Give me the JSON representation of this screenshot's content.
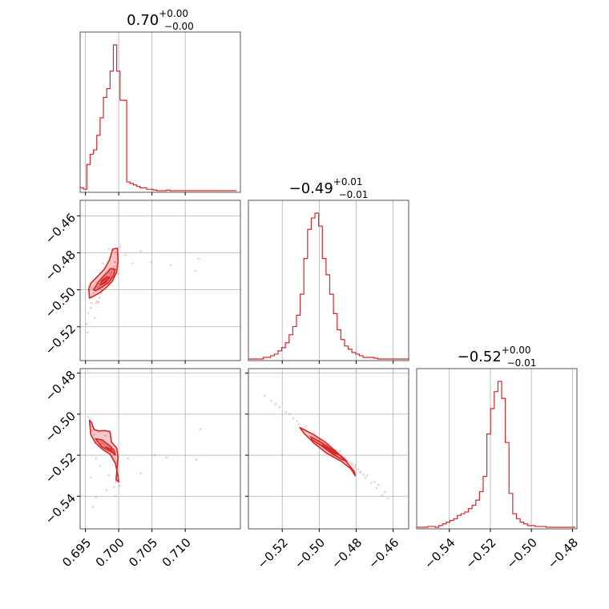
{
  "chart_data": {
    "type": "corner",
    "accent_color": "#d62728",
    "grid": true,
    "titles": [
      {
        "main": "0.70",
        "sup": "+0.00",
        "sub": "−0.00"
      },
      {
        "main": "−0.49",
        "sup": "+0.01",
        "sub": "−0.01"
      },
      {
        "main": "−0.52",
        "sup": "+0.00",
        "sub": "−0.01"
      }
    ],
    "params": [
      {
        "range": [
          0.6942,
          0.7183
        ],
        "ticks": [
          0.695,
          0.7,
          0.705,
          0.71
        ],
        "tick_labels": [
          "0.695",
          "0.700",
          "0.705",
          "0.710"
        ]
      },
      {
        "range": [
          -0.5383,
          -0.4516
        ],
        "ticks": [
          -0.52,
          -0.5,
          -0.48,
          -0.46
        ],
        "tick_labels": [
          "−0.52",
          "−0.50",
          "−0.48",
          "−0.46"
        ]
      },
      {
        "range": [
          -0.5559,
          -0.4778
        ],
        "ticks": [
          -0.54,
          -0.52,
          -0.5,
          -0.48
        ],
        "tick_labels": [
          "−0.54",
          "−0.52",
          "−0.50",
          "−0.48"
        ]
      }
    ],
    "histograms": [
      {
        "start": 0.6942,
        "step": 0.0005,
        "counts": [
          0.02,
          0.01,
          0.18,
          0.25,
          0.28,
          0.38,
          0.5,
          0.64,
          0.7,
          0.82,
          1.0,
          0.82,
          0.62,
          0.62,
          0.06,
          0.05,
          0.04,
          0.03,
          0.02,
          0.02,
          0.01,
          0.01,
          0.005,
          0.0,
          0.0,
          0.0,
          0.005,
          0.0,
          0.0,
          0.0,
          0.0,
          0.0,
          0.0,
          0.0,
          0.0,
          0.0,
          0.0,
          0.0,
          0.0,
          0.0,
          0.0,
          0.0,
          0.0,
          0.0,
          0.0,
          0.0,
          0.0
        ]
      },
      {
        "start": -0.5383,
        "step": 0.002,
        "counts": [
          0.0,
          0.0,
          0.0,
          0.0,
          0.01,
          0.01,
          0.02,
          0.03,
          0.05,
          0.07,
          0.1,
          0.15,
          0.2,
          0.27,
          0.4,
          0.62,
          0.8,
          0.87,
          0.9,
          0.82,
          0.62,
          0.52,
          0.4,
          0.28,
          0.18,
          0.12,
          0.08,
          0.06,
          0.04,
          0.03,
          0.02,
          0.01,
          0.01,
          0.01,
          0.005,
          0.0,
          0.0,
          0.0,
          0.0,
          0.0,
          0.0,
          0.0,
          0.0,
          0.0
        ]
      },
      {
        "start": -0.5559,
        "step": 0.0018,
        "counts": [
          0.0,
          0.0,
          0.0,
          0.005,
          0.005,
          0.0,
          0.01,
          0.02,
          0.03,
          0.04,
          0.05,
          0.07,
          0.08,
          0.09,
          0.11,
          0.13,
          0.16,
          0.21,
          0.3,
          0.55,
          0.7,
          0.8,
          0.86,
          0.76,
          0.5,
          0.2,
          0.08,
          0.05,
          0.03,
          0.02,
          0.01,
          0.01,
          0.005,
          0.005,
          0.005,
          0.0,
          0.0,
          0.0,
          0.0,
          0.0,
          0.0,
          0.0,
          0.0
        ]
      }
    ],
    "pairs": [
      {
        "row": 1,
        "col": 0,
        "contours": [
          [
            [
              0.6955,
              -0.4995
            ],
            [
              0.6956,
              -0.5045
            ],
            [
              0.6962,
              -0.5035
            ],
            [
              0.6972,
              -0.5015
            ],
            [
              0.6982,
              -0.4985
            ],
            [
              0.699,
              -0.4955
            ],
            [
              0.6997,
              -0.4905
            ],
            [
              0.6999,
              -0.4845
            ],
            [
              0.6998,
              -0.4775
            ],
            [
              0.6991,
              -0.478
            ],
            [
              0.6986,
              -0.484
            ],
            [
              0.6978,
              -0.489
            ],
            [
              0.6966,
              -0.4935
            ],
            [
              0.6958,
              -0.4965
            ]
          ],
          [
            [
              0.6962,
              -0.5
            ],
            [
              0.6965,
              -0.5005
            ],
            [
              0.6975,
              -0.4985
            ],
            [
              0.6985,
              -0.496
            ],
            [
              0.6992,
              -0.4925
            ],
            [
              0.6995,
              -0.489
            ],
            [
              0.6988,
              -0.4885
            ],
            [
              0.698,
              -0.4915
            ],
            [
              0.697,
              -0.4955
            ]
          ],
          [
            [
              0.6972,
              -0.4975
            ],
            [
              0.698,
              -0.496
            ],
            [
              0.6986,
              -0.4935
            ],
            [
              0.6982,
              -0.493
            ],
            [
              0.6975,
              -0.495
            ]
          ]
        ],
        "points": [
          [
            0.6952,
            -0.5185
          ],
          [
            0.6954,
            -0.5128
          ],
          [
            0.6959,
            -0.5072
          ],
          [
            0.6966,
            -0.5071
          ],
          [
            0.6968,
            -0.5064
          ],
          [
            0.697,
            -0.5067
          ],
          [
            0.6971,
            -0.5043
          ],
          [
            0.6974,
            -0.5019
          ],
          [
            0.6976,
            -0.5003
          ],
          [
            0.6979,
            -0.4969
          ],
          [
            0.698,
            -0.4957
          ],
          [
            0.6982,
            -0.4963
          ],
          [
            0.6984,
            -0.4971
          ],
          [
            0.6986,
            -0.4932
          ],
          [
            0.6989,
            -0.4922
          ],
          [
            0.699,
            -0.4904
          ],
          [
            0.6991,
            -0.4882
          ],
          [
            0.6993,
            -0.4878
          ],
          [
            0.6995,
            -0.4851
          ],
          [
            0.6997,
            -0.4834
          ],
          [
            0.6998,
            -0.4808
          ],
          [
            0.6962,
            -0.5019
          ],
          [
            0.6973,
            -0.5001
          ],
          [
            0.6988,
            -0.493
          ],
          [
            0.6995,
            -0.4797
          ],
          [
            0.6986,
            -0.4885
          ],
          [
            0.6979,
            -0.4917
          ],
          [
            0.6967,
            -0.4961
          ],
          [
            0.696,
            -0.499
          ],
          [
            0.6994,
            -0.485
          ],
          [
            0.7002,
            -0.4768
          ],
          [
            0.701,
            -0.4812
          ],
          [
            0.7021,
            -0.4857
          ],
          [
            0.7033,
            -0.479
          ],
          [
            0.7049,
            -0.4851
          ],
          [
            0.7078,
            -0.4866
          ],
          [
            0.712,
            -0.4833
          ],
          [
            0.7115,
            -0.4897
          ],
          [
            0.6958,
            -0.5098
          ],
          [
            0.6964,
            -0.5151
          ],
          [
            0.6953,
            -0.5232
          ],
          [
            0.6976,
            -0.4856
          ],
          [
            0.6985,
            -0.4779
          ],
          [
            0.6999,
            -0.4912
          ],
          [
            0.697,
            -0.4985
          ],
          [
            0.6982,
            -0.4955
          ],
          [
            0.6992,
            -0.4893
          ],
          [
            0.6977,
            -0.494
          ],
          [
            0.6988,
            -0.4908
          ],
          [
            0.6996,
            -0.487
          ]
        ]
      },
      {
        "row": 2,
        "col": 0,
        "contours": [
          [
            [
              0.6956,
              -0.503
            ],
            [
              0.6958,
              -0.51
            ],
            [
              0.6965,
              -0.514
            ],
            [
              0.6975,
              -0.517
            ],
            [
              0.6987,
              -0.5195
            ],
            [
              0.6995,
              -0.524
            ],
            [
              0.6999,
              -0.53
            ],
            [
              0.7,
              -0.533
            ],
            [
              0.6996,
              -0.532
            ],
            [
              0.6998,
              -0.525
            ],
            [
              0.6999,
              -0.521
            ],
            [
              0.6997,
              -0.5165
            ],
            [
              0.6989,
              -0.5135
            ],
            [
              0.6987,
              -0.5085
            ],
            [
              0.6979,
              -0.508
            ],
            [
              0.697,
              -0.5082
            ],
            [
              0.6963,
              -0.5075
            ],
            [
              0.6959,
              -0.504
            ]
          ],
          [
            [
              0.6965,
              -0.512
            ],
            [
              0.6975,
              -0.516
            ],
            [
              0.699,
              -0.5185
            ],
            [
              0.6995,
              -0.52
            ],
            [
              0.6993,
              -0.5175
            ],
            [
              0.6985,
              -0.515
            ],
            [
              0.6975,
              -0.5125
            ]
          ],
          [
            [
              0.698,
              -0.516
            ],
            [
              0.699,
              -0.518
            ],
            [
              0.6993,
              -0.5195
            ],
            [
              0.6988,
              -0.517
            ]
          ]
        ],
        "points": [
          [
            0.6954,
            -0.5014
          ],
          [
            0.6957,
            -0.5026
          ],
          [
            0.696,
            -0.5081
          ],
          [
            0.6963,
            -0.5101
          ],
          [
            0.6967,
            -0.5131
          ],
          [
            0.697,
            -0.5154
          ],
          [
            0.6974,
            -0.5164
          ],
          [
            0.6977,
            -0.5169
          ],
          [
            0.698,
            -0.5175
          ],
          [
            0.6984,
            -0.5181
          ],
          [
            0.6988,
            -0.5192
          ],
          [
            0.6991,
            -0.5203
          ],
          [
            0.6994,
            -0.5217
          ],
          [
            0.6996,
            -0.5233
          ],
          [
            0.6998,
            -0.5251
          ],
          [
            0.6999,
            -0.5274
          ],
          [
            0.6998,
            -0.53
          ],
          [
            0.6996,
            -0.533
          ],
          [
            0.6993,
            -0.5355
          ],
          [
            0.6969,
            -0.5085
          ],
          [
            0.698,
            -0.5105
          ],
          [
            0.6986,
            -0.509
          ],
          [
            0.6975,
            -0.514
          ],
          [
            0.6989,
            -0.516
          ],
          [
            0.696,
            -0.506
          ],
          [
            0.6966,
            -0.5215
          ],
          [
            0.6972,
            -0.5252
          ],
          [
            0.6958,
            -0.531
          ],
          [
            0.6966,
            -0.5405
          ],
          [
            0.6982,
            -0.537
          ],
          [
            0.6961,
            -0.5452
          ],
          [
            0.7014,
            -0.5216
          ],
          [
            0.7033,
            -0.5289
          ],
          [
            0.7054,
            -0.52
          ],
          [
            0.7072,
            -0.5211
          ],
          [
            0.7123,
            -0.5073
          ],
          [
            0.7117,
            -0.5221
          ],
          [
            0.7001,
            -0.535
          ],
          [
            0.6985,
            -0.5296
          ],
          [
            0.6995,
            -0.54
          ]
        ]
      },
      {
        "row": 2,
        "col": 1,
        "contours": [
          [
            [
              -0.5105,
              -0.5065
            ],
            [
              -0.503,
              -0.51
            ],
            [
              -0.497,
              -0.5135
            ],
            [
              -0.4905,
              -0.5185
            ],
            [
              -0.4855,
              -0.523
            ],
            [
              -0.481,
              -0.528
            ],
            [
              -0.4805,
              -0.53
            ],
            [
              -0.483,
              -0.5265
            ],
            [
              -0.488,
              -0.523
            ],
            [
              -0.496,
              -0.519
            ],
            [
              -0.503,
              -0.514
            ],
            [
              -0.5085,
              -0.509
            ]
          ],
          [
            [
              -0.5045,
              -0.511
            ],
            [
              -0.4985,
              -0.514
            ],
            [
              -0.4935,
              -0.517
            ],
            [
              -0.488,
              -0.5205
            ],
            [
              -0.485,
              -0.523
            ],
            [
              -0.488,
              -0.522
            ],
            [
              -0.4935,
              -0.519
            ],
            [
              -0.4995,
              -0.515
            ],
            [
              -0.504,
              -0.5125
            ]
          ],
          [
            [
              -0.4985,
              -0.515
            ],
            [
              -0.4945,
              -0.517
            ],
            [
              -0.4905,
              -0.5195
            ],
            [
              -0.4925,
              -0.519
            ],
            [
              -0.4965,
              -0.5165
            ]
          ]
        ],
        "points": [
          [
            -0.5295,
            -0.491
          ],
          [
            -0.526,
            -0.4935
          ],
          [
            -0.5215,
            -0.4965
          ],
          [
            -0.518,
            -0.499
          ],
          [
            -0.514,
            -0.502
          ],
          [
            -0.511,
            -0.505
          ],
          [
            -0.508,
            -0.5075
          ],
          [
            -0.505,
            -0.509
          ],
          [
            -0.502,
            -0.511
          ],
          [
            -0.499,
            -0.513
          ],
          [
            -0.496,
            -0.515
          ],
          [
            -0.493,
            -0.517
          ],
          [
            -0.49,
            -0.519
          ],
          [
            -0.487,
            -0.521
          ],
          [
            -0.484,
            -0.5235
          ],
          [
            -0.481,
            -0.526
          ],
          [
            -0.478,
            -0.5285
          ],
          [
            -0.475,
            -0.531
          ],
          [
            -0.472,
            -0.5335
          ],
          [
            -0.469,
            -0.536
          ],
          [
            -0.466,
            -0.5395
          ],
          [
            -0.463,
            -0.541
          ],
          [
            -0.516,
            -0.5
          ],
          [
            -0.512,
            -0.5035
          ],
          [
            -0.507,
            -0.506
          ],
          [
            -0.5,
            -0.5125
          ],
          [
            -0.495,
            -0.5145
          ],
          [
            -0.489,
            -0.518
          ],
          [
            -0.482,
            -0.5245
          ],
          [
            -0.479,
            -0.527
          ],
          [
            -0.474,
            -0.53
          ],
          [
            -0.47,
            -0.533
          ],
          [
            -0.486,
            -0.5215
          ],
          [
            -0.492,
            -0.5185
          ],
          [
            -0.503,
            -0.5095
          ],
          [
            -0.4805,
            -0.525
          ],
          [
            -0.476,
            -0.5295
          ],
          [
            -0.468,
            -0.5345
          ],
          [
            -0.5235,
            -0.495
          ],
          [
            -0.4645,
            -0.538
          ],
          [
            -0.497,
            -0.516
          ],
          [
            -0.488,
            -0.52
          ],
          [
            -0.483,
            -0.524
          ],
          [
            -0.491,
            -0.5175
          ],
          [
            -0.505,
            -0.5105
          ],
          [
            -0.4775,
            -0.528
          ]
        ]
      }
    ]
  }
}
